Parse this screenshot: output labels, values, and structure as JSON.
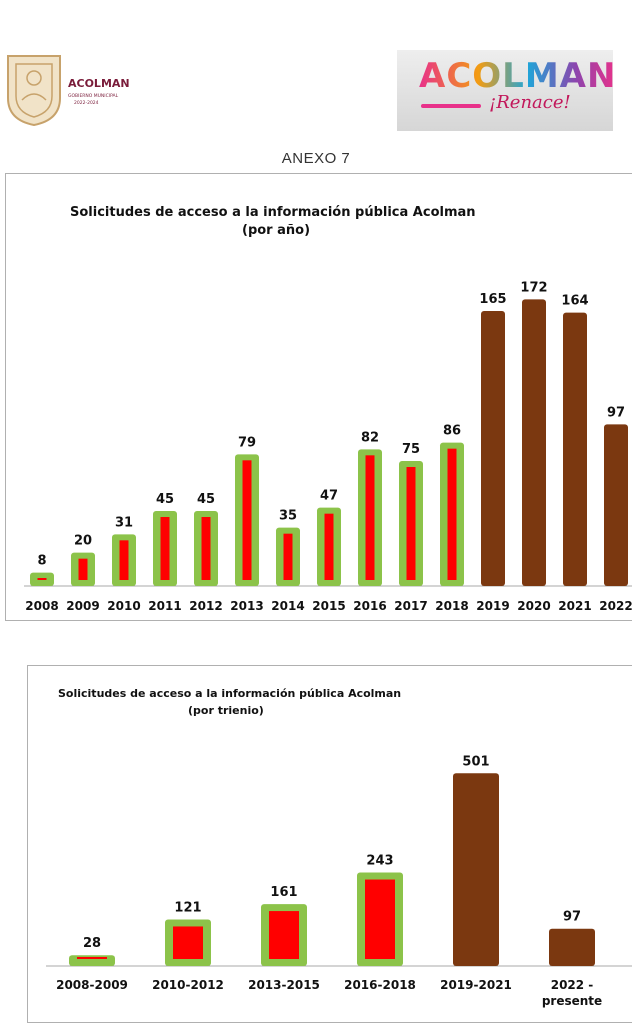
{
  "header": {
    "logo_left_name": "ACOLMAN",
    "logo_left_subtitle": "GOBIERNO MUNICIPAL",
    "logo_left_years": "2022-2024",
    "logo_right_name": "ACOLMAN",
    "logo_right_slogan": "¡Renace!",
    "annex": "ANEXO 7"
  },
  "colors": {
    "green": "#8cc34a",
    "red": "#ff0000",
    "brown": "#7b3810",
    "gold": "#c7a26b"
  },
  "chart_data": [
    {
      "type": "bar",
      "title": "Solicitudes de acceso a la información pública Acolman",
      "subtitle": "(por año)",
      "xlabel": "",
      "ylabel": "",
      "ylim": [
        0,
        180
      ],
      "grid": false,
      "categories": [
        "2008",
        "2009",
        "2010",
        "2011",
        "2012",
        "2013",
        "2014",
        "2015",
        "2016",
        "2017",
        "2018",
        "2019",
        "2020",
        "2021",
        "2022"
      ],
      "values": [
        8,
        20,
        31,
        45,
        45,
        79,
        35,
        47,
        82,
        75,
        86,
        165,
        172,
        164,
        97
      ],
      "styles": [
        "green-red",
        "green-red",
        "green-red",
        "green-red",
        "green-red",
        "green-red",
        "green-red",
        "green-red",
        "green-red",
        "green-red",
        "green-red",
        "brown",
        "brown",
        "brown",
        "brown"
      ]
    },
    {
      "type": "bar",
      "title": "Solicitudes de acceso a la información pública Acolman",
      "subtitle": "(por trienio)",
      "xlabel": "",
      "ylabel": "",
      "ylim": [
        0,
        520
      ],
      "grid": false,
      "categories": [
        "2008-2009",
        "2010-2012",
        "2013-2015",
        "2016-2018",
        "2019-2021",
        "2022 - presente"
      ],
      "values": [
        28,
        121,
        161,
        243,
        501,
        97
      ],
      "styles": [
        "green-red",
        "green-red",
        "green-red",
        "green-red",
        "brown",
        "brown"
      ]
    }
  ]
}
